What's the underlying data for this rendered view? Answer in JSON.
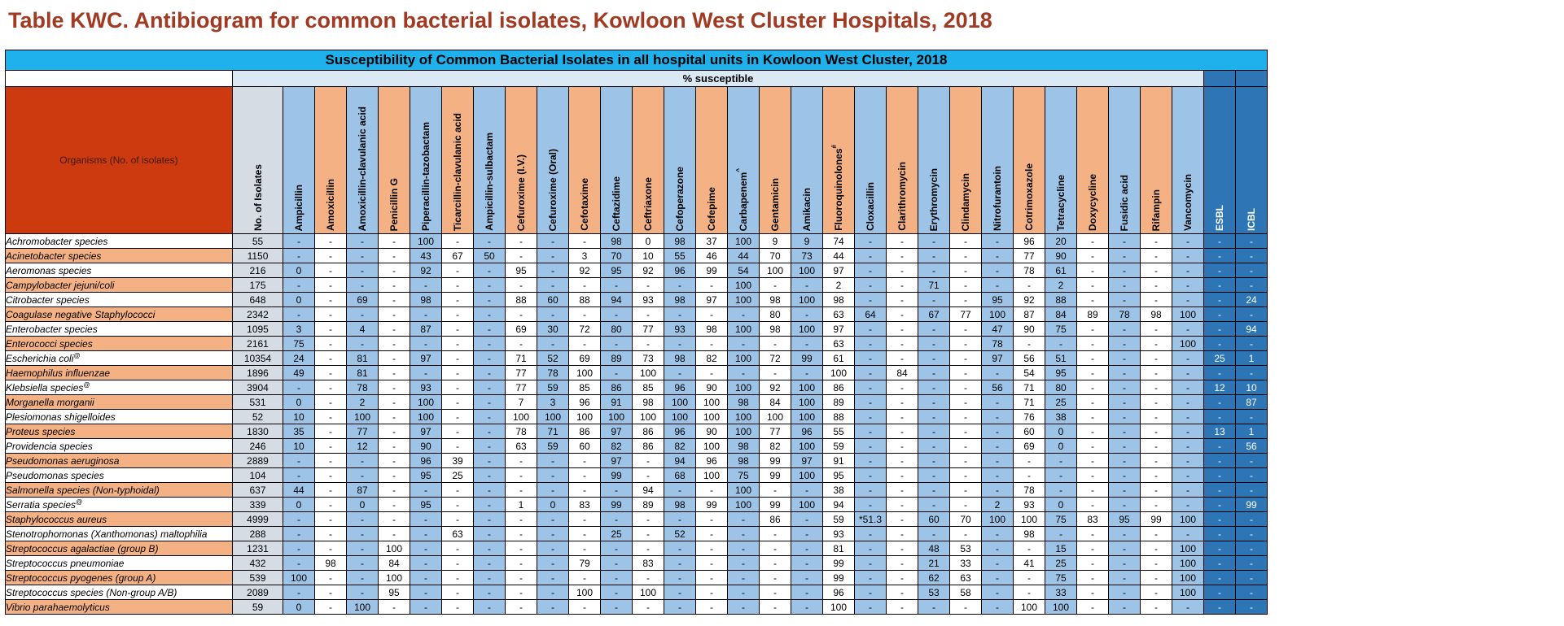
{
  "title": "Table KWC. Antibiogram for common bacterial isolates, Kowloon West Cluster Hospitals, 2018",
  "banner": "Susceptibility of Common Bacterial Isolates in all hospital units in Kowloon West Cluster, 2018",
  "subheader": "% susceptible",
  "organisms_header": "Organisms (No. of isolates)",
  "columns": [
    {
      "label": "No. of Isolates",
      "style": "gray"
    },
    {
      "label": "Ampicillin",
      "style": "blue"
    },
    {
      "label": "Amoxicillin",
      "style": "orange"
    },
    {
      "label": "Amoxicillin-clavulanic acid",
      "style": "blue"
    },
    {
      "label": "Penicillin G",
      "style": "orange"
    },
    {
      "label": "Piperacillin-tazobactam",
      "style": "blue"
    },
    {
      "label": "Ticarcillin-clavulanic acid",
      "style": "orange"
    },
    {
      "label": "Ampicillin-sulbactam",
      "style": "blue"
    },
    {
      "label": "Cefuroxime (I.V.)",
      "style": "orange"
    },
    {
      "label": "Cefuroxime (Oral)",
      "style": "blue"
    },
    {
      "label": "Cefotaxime",
      "style": "orange"
    },
    {
      "label": "Ceftazidime",
      "style": "blue"
    },
    {
      "label": "Ceftriaxone",
      "style": "orange"
    },
    {
      "label": "Cefoperazone",
      "style": "blue"
    },
    {
      "label": "Cefepime",
      "style": "orange"
    },
    {
      "label": "Carbapenem^",
      "style": "blue"
    },
    {
      "label": "Gentamicin",
      "style": "orange"
    },
    {
      "label": "Amikacin",
      "style": "blue"
    },
    {
      "label": "Fluoroquinolones#",
      "style": "orange"
    },
    {
      "label": "Cloxacillin",
      "style": "blue"
    },
    {
      "label": "Clarithromycin",
      "style": "orange"
    },
    {
      "label": "Erythromycin",
      "style": "blue"
    },
    {
      "label": "Clindamycin",
      "style": "orange"
    },
    {
      "label": "Nitrofurantoin",
      "style": "blue"
    },
    {
      "label": "Cotrimoxazole",
      "style": "orange"
    },
    {
      "label": "Tetracycline",
      "style": "blue"
    },
    {
      "label": "Doxycycline",
      "style": "orange"
    },
    {
      "label": "Fusidic acid",
      "style": "blue"
    },
    {
      "label": "Rifampin",
      "style": "orange"
    },
    {
      "label": "Vancomycin",
      "style": "blue"
    },
    {
      "label": "ESBL",
      "style": "dblue"
    },
    {
      "label": "ICBL",
      "style": "dblue"
    }
  ],
  "rows": [
    {
      "organism": "Achromobacter species",
      "values": [
        "55",
        "-",
        "-",
        "-",
        "-",
        "100",
        "-",
        "-",
        "-",
        "-",
        "-",
        "98",
        "0",
        "98",
        "37",
        "100",
        "9",
        "9",
        "74",
        "-",
        "-",
        "-",
        "-",
        "-",
        "96",
        "20",
        "-",
        "-",
        "-",
        "-",
        "-",
        "-"
      ]
    },
    {
      "organism": "Acinetobacter species",
      "values": [
        "1150",
        "-",
        "-",
        "-",
        "-",
        "43",
        "67",
        "50",
        "-",
        "-",
        "3",
        "70",
        "10",
        "55",
        "46",
        "44",
        "70",
        "73",
        "44",
        "-",
        "-",
        "-",
        "-",
        "-",
        "77",
        "90",
        "-",
        "-",
        "-",
        "-",
        "-",
        "-"
      ]
    },
    {
      "organism": "Aeromonas species",
      "values": [
        "216",
        "0",
        "-",
        "-",
        "-",
        "92",
        "-",
        "-",
        "95",
        "-",
        "92",
        "95",
        "92",
        "96",
        "99",
        "54",
        "100",
        "100",
        "97",
        "-",
        "-",
        "-",
        "-",
        "-",
        "78",
        "61",
        "-",
        "-",
        "-",
        "-",
        "-",
        "-"
      ]
    },
    {
      "organism": "Campylobacter jejuni/coli",
      "values": [
        "175",
        "-",
        "-",
        "-",
        "-",
        "-",
        "-",
        "-",
        "-",
        "-",
        "-",
        "-",
        "-",
        "-",
        "-",
        "100",
        "-",
        "-",
        "2",
        "-",
        "-",
        "71",
        "-",
        "-",
        "-",
        "2",
        "-",
        "-",
        "-",
        "-",
        "-",
        "-"
      ]
    },
    {
      "organism": "Citrobacter species",
      "values": [
        "648",
        "0",
        "-",
        "69",
        "-",
        "98",
        "-",
        "-",
        "88",
        "60",
        "88",
        "94",
        "93",
        "98",
        "97",
        "100",
        "98",
        "100",
        "98",
        "-",
        "-",
        "-",
        "-",
        "95",
        "92",
        "88",
        "-",
        "-",
        "-",
        "-",
        "-",
        "24"
      ]
    },
    {
      "organism": "Coagulase negative Staphylococci",
      "values": [
        "2342",
        "-",
        "-",
        "-",
        "-",
        "-",
        "-",
        "-",
        "-",
        "-",
        "-",
        "-",
        "-",
        "-",
        "-",
        "-",
        "80",
        "-",
        "63",
        "64",
        "-",
        "67",
        "77",
        "100",
        "87",
        "84",
        "89",
        "78",
        "98",
        "100",
        "-",
        "-"
      ]
    },
    {
      "organism": "Enterobacter species",
      "values": [
        "1095",
        "3",
        "-",
        "4",
        "-",
        "87",
        "-",
        "-",
        "69",
        "30",
        "72",
        "80",
        "77",
        "93",
        "98",
        "100",
        "98",
        "100",
        "97",
        "-",
        "-",
        "-",
        "-",
        "47",
        "90",
        "75",
        "-",
        "-",
        "-",
        "-",
        "-",
        "94"
      ]
    },
    {
      "organism": "Enterococci species",
      "values": [
        "2161",
        "75",
        "-",
        "-",
        "-",
        "-",
        "-",
        "-",
        "-",
        "-",
        "-",
        "-",
        "-",
        "-",
        "-",
        "-",
        "-",
        "-",
        "63",
        "-",
        "-",
        "-",
        "-",
        "78",
        "-",
        "-",
        "-",
        "-",
        "-",
        "100",
        "-",
        "-"
      ]
    },
    {
      "organism": "Escherichia coli",
      "sup": "@",
      "values": [
        "10354",
        "24",
        "-",
        "81",
        "-",
        "97",
        "-",
        "-",
        "71",
        "52",
        "69",
        "89",
        "73",
        "98",
        "82",
        "100",
        "72",
        "99",
        "61",
        "-",
        "-",
        "-",
        "-",
        "97",
        "56",
        "51",
        "-",
        "-",
        "-",
        "-",
        "25",
        "1"
      ]
    },
    {
      "organism": "Haemophilus influenzae",
      "values": [
        "1896",
        "49",
        "-",
        "81",
        "-",
        "-",
        "-",
        "-",
        "77",
        "78",
        "100",
        "-",
        "100",
        "-",
        "-",
        "-",
        "-",
        "-",
        "100",
        "-",
        "84",
        "-",
        "-",
        "-",
        "54",
        "95",
        "-",
        "-",
        "-",
        "-",
        "-",
        "-"
      ]
    },
    {
      "organism": "Klebsiella species",
      "sup": "@",
      "values": [
        "3904",
        "-",
        "-",
        "78",
        "-",
        "93",
        "-",
        "-",
        "77",
        "59",
        "85",
        "86",
        "85",
        "96",
        "90",
        "100",
        "92",
        "100",
        "86",
        "-",
        "-",
        "-",
        "-",
        "56",
        "71",
        "80",
        "-",
        "-",
        "-",
        "-",
        "12",
        "10"
      ]
    },
    {
      "organism": "Morganella morganii",
      "values": [
        "531",
        "0",
        "-",
        "2",
        "-",
        "100",
        "-",
        "-",
        "7",
        "3",
        "96",
        "91",
        "98",
        "100",
        "100",
        "98",
        "84",
        "100",
        "89",
        "-",
        "-",
        "-",
        "-",
        "-",
        "71",
        "25",
        "-",
        "-",
        "-",
        "-",
        "-",
        "87"
      ]
    },
    {
      "organism": "Plesiomonas shigelloides",
      "values": [
        "52",
        "10",
        "-",
        "100",
        "-",
        "100",
        "-",
        "-",
        "100",
        "100",
        "100",
        "100",
        "100",
        "100",
        "100",
        "100",
        "100",
        "100",
        "88",
        "-",
        "-",
        "-",
        "-",
        "-",
        "76",
        "38",
        "-",
        "-",
        "-",
        "-",
        "-",
        "-"
      ]
    },
    {
      "organism": "Proteus species",
      "values": [
        "1830",
        "35",
        "-",
        "77",
        "-",
        "97",
        "-",
        "-",
        "78",
        "71",
        "86",
        "97",
        "86",
        "96",
        "90",
        "100",
        "77",
        "96",
        "55",
        "-",
        "-",
        "-",
        "-",
        "-",
        "60",
        "0",
        "-",
        "-",
        "-",
        "-",
        "13",
        "1"
      ]
    },
    {
      "organism": "Providencia species",
      "values": [
        "246",
        "10",
        "-",
        "12",
        "-",
        "90",
        "-",
        "-",
        "63",
        "59",
        "60",
        "82",
        "86",
        "82",
        "100",
        "98",
        "82",
        "100",
        "59",
        "-",
        "-",
        "-",
        "-",
        "-",
        "69",
        "0",
        "-",
        "-",
        "-",
        "-",
        "-",
        "56"
      ]
    },
    {
      "organism": "Pseudomonas aeruginosa",
      "values": [
        "2889",
        "-",
        "-",
        "-",
        "-",
        "96",
        "39",
        "-",
        "-",
        "-",
        "-",
        "97",
        "-",
        "94",
        "96",
        "98",
        "99",
        "97",
        "91",
        "-",
        "-",
        "-",
        "-",
        "-",
        "-",
        "-",
        "-",
        "-",
        "-",
        "-",
        "-",
        "-"
      ]
    },
    {
      "organism": "Pseudomonas species",
      "values": [
        "104",
        "-",
        "-",
        "-",
        "-",
        "95",
        "25",
        "-",
        "-",
        "-",
        "-",
        "99",
        "-",
        "68",
        "100",
        "75",
        "99",
        "100",
        "95",
        "-",
        "-",
        "-",
        "-",
        "-",
        "-",
        "-",
        "-",
        "-",
        "-",
        "-",
        "-",
        "-"
      ]
    },
    {
      "organism": "Salmonella species (Non-typhoidal)",
      "values": [
        "637",
        "44",
        "-",
        "87",
        "-",
        "-",
        "-",
        "-",
        "-",
        "-",
        "-",
        "-",
        "94",
        "-",
        "-",
        "100",
        "-",
        "-",
        "38",
        "-",
        "-",
        "-",
        "-",
        "-",
        "78",
        "-",
        "-",
        "-",
        "-",
        "-",
        "-",
        "-"
      ]
    },
    {
      "organism": "Serratia species",
      "sup": "@",
      "values": [
        "339",
        "0",
        "-",
        "0",
        "-",
        "95",
        "-",
        "-",
        "1",
        "0",
        "83",
        "99",
        "89",
        "98",
        "99",
        "100",
        "99",
        "100",
        "94",
        "-",
        "-",
        "-",
        "-",
        "2",
        "93",
        "0",
        "-",
        "-",
        "-",
        "-",
        "-",
        "99"
      ]
    },
    {
      "organism": "Staphylococcus aureus",
      "values": [
        "4999",
        "-",
        "-",
        "-",
        "-",
        "-",
        "-",
        "-",
        "-",
        "-",
        "-",
        "-",
        "-",
        "-",
        "-",
        "-",
        "86",
        "-",
        "59",
        "*51.3",
        "-",
        "60",
        "70",
        "100",
        "100",
        "75",
        "83",
        "95",
        "99",
        "100",
        "-",
        "-"
      ]
    },
    {
      "organism": "Stenotrophomonas (Xanthomonas) maltophilia",
      "values": [
        "288",
        "-",
        "-",
        "-",
        "-",
        "-",
        "63",
        "-",
        "-",
        "-",
        "-",
        "25",
        "-",
        "52",
        "-",
        "-",
        "-",
        "-",
        "93",
        "-",
        "-",
        "-",
        "-",
        "-",
        "98",
        "-",
        "-",
        "-",
        "-",
        "-",
        "-",
        "-"
      ]
    },
    {
      "organism": "Streptococcus agalactiae (group B)",
      "values": [
        "1231",
        "-",
        "-",
        "-",
        "100",
        "-",
        "-",
        "-",
        "-",
        "-",
        "-",
        "-",
        "-",
        "-",
        "-",
        "-",
        "-",
        "-",
        "81",
        "-",
        "-",
        "48",
        "53",
        "-",
        "-",
        "15",
        "-",
        "-",
        "-",
        "100",
        "-",
        "-"
      ]
    },
    {
      "organism": "Streptococcus pneumoniae",
      "values": [
        "432",
        "-",
        "98",
        "-",
        "84",
        "-",
        "-",
        "-",
        "-",
        "-",
        "79",
        "-",
        "83",
        "-",
        "-",
        "-",
        "-",
        "-",
        "99",
        "-",
        "-",
        "21",
        "33",
        "-",
        "41",
        "25",
        "-",
        "-",
        "-",
        "100",
        "-",
        "-"
      ]
    },
    {
      "organism": "Streptococcus pyogenes (group A)",
      "values": [
        "539",
        "100",
        "-",
        "-",
        "100",
        "-",
        "-",
        "-",
        "-",
        "-",
        "-",
        "-",
        "-",
        "-",
        "-",
        "-",
        "-",
        "-",
        "99",
        "-",
        "-",
        "62",
        "63",
        "-",
        "-",
        "75",
        "-",
        "-",
        "-",
        "100",
        "-",
        "-"
      ]
    },
    {
      "organism": "Streptococcus species (Non-group A/B)",
      "values": [
        "2089",
        "-",
        "-",
        "-",
        "95",
        "-",
        "-",
        "-",
        "-",
        "-",
        "100",
        "-",
        "100",
        "-",
        "-",
        "-",
        "-",
        "-",
        "96",
        "-",
        "-",
        "53",
        "58",
        "-",
        "-",
        "33",
        "-",
        "-",
        "-",
        "100",
        "-",
        "-"
      ]
    },
    {
      "organism": "Vibrio parahaemolyticus",
      "values": [
        "59",
        "0",
        "-",
        "100",
        "-",
        "-",
        "-",
        "-",
        "-",
        "-",
        "-",
        "-",
        "-",
        "-",
        "-",
        "-",
        "-",
        "-",
        "100",
        "-",
        "-",
        "-",
        "-",
        "-",
        "100",
        "100",
        "-",
        "-",
        "-",
        "-",
        "-",
        "-"
      ]
    }
  ]
}
